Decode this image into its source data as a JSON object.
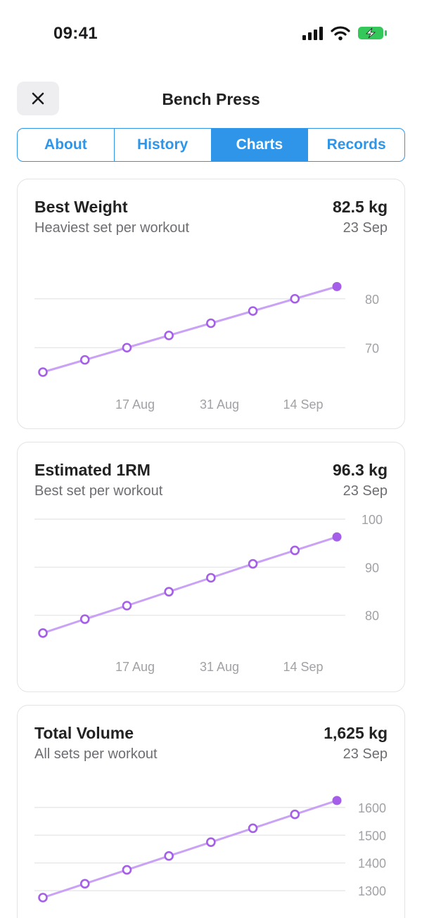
{
  "status": {
    "time": "09:41"
  },
  "nav": {
    "title": "Bench Press",
    "close_icon": "close-icon"
  },
  "tabs": [
    {
      "label": "About",
      "active": false
    },
    {
      "label": "History",
      "active": false
    },
    {
      "label": "Charts",
      "active": true
    },
    {
      "label": "Records",
      "active": false
    }
  ],
  "colors": {
    "accent": "#2f95e8",
    "line": "#c9a2f5",
    "point": "#a45ee8",
    "battery": "#34c759"
  },
  "cards": [
    {
      "title": "Best Weight",
      "subtitle": "Heaviest set per workout",
      "value": "82.5 kg",
      "date": "23 Sep"
    },
    {
      "title": "Estimated 1RM",
      "subtitle": "Best set per workout",
      "value": "96.3 kg",
      "date": "23 Sep"
    },
    {
      "title": "Total Volume",
      "subtitle": "All sets per workout",
      "value": "1,625 kg",
      "date": "23 Sep"
    }
  ],
  "chart_data": [
    {
      "type": "line",
      "title": "Best Weight",
      "x_ticks": [
        "17 Aug",
        "31 Aug",
        "14 Sep"
      ],
      "y_ticks": [
        70,
        80
      ],
      "ylim": [
        65,
        85
      ],
      "values": [
        65,
        67.5,
        70,
        72.5,
        75,
        77.5,
        80,
        82.5
      ]
    },
    {
      "type": "line",
      "title": "Estimated 1RM",
      "x_ticks": [
        "17 Aug",
        "31 Aug",
        "14 Sep"
      ],
      "y_ticks": [
        80,
        90,
        100
      ],
      "ylim": [
        76,
        100
      ],
      "values": [
        76.3,
        79.2,
        82.0,
        84.9,
        87.8,
        90.7,
        93.5,
        96.3
      ]
    },
    {
      "type": "line",
      "title": "Total Volume",
      "x_ticks": [],
      "y_ticks": [
        1300,
        1400,
        1500,
        1600
      ],
      "ylim": [
        1275,
        1625
      ],
      "values": [
        1275,
        1325,
        1375,
        1425,
        1475,
        1525,
        1575,
        1625
      ]
    }
  ]
}
